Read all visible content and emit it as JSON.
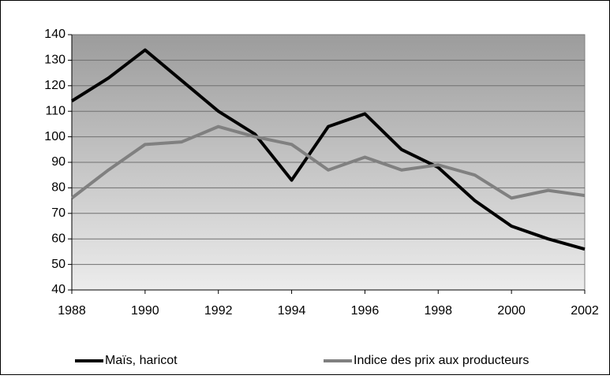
{
  "chart_data": {
    "type": "line",
    "x": [
      1988,
      1989,
      1990,
      1991,
      1992,
      1993,
      1994,
      1995,
      1996,
      1997,
      1998,
      1999,
      2000,
      2001,
      2002
    ],
    "series": [
      {
        "name": "Maïs, haricot",
        "color": "#000000",
        "values": [
          114,
          123,
          134,
          122,
          110,
          101,
          83,
          104,
          109,
          95,
          88,
          75,
          65,
          60,
          56
        ]
      },
      {
        "name": "Indice des prix aux producteurs",
        "color": "#808080",
        "values": [
          76,
          87,
          97,
          98,
          104,
          100,
          97,
          87,
          92,
          87,
          89,
          85,
          76,
          79,
          77
        ]
      }
    ],
    "xlim": [
      1988,
      2002
    ],
    "xticks": [
      1988,
      1990,
      1992,
      1994,
      1996,
      1998,
      2000,
      2002
    ],
    "ylim": [
      40,
      140
    ],
    "yticks": [
      40,
      50,
      60,
      70,
      80,
      90,
      100,
      110,
      120,
      130,
      140
    ],
    "grid": true
  }
}
